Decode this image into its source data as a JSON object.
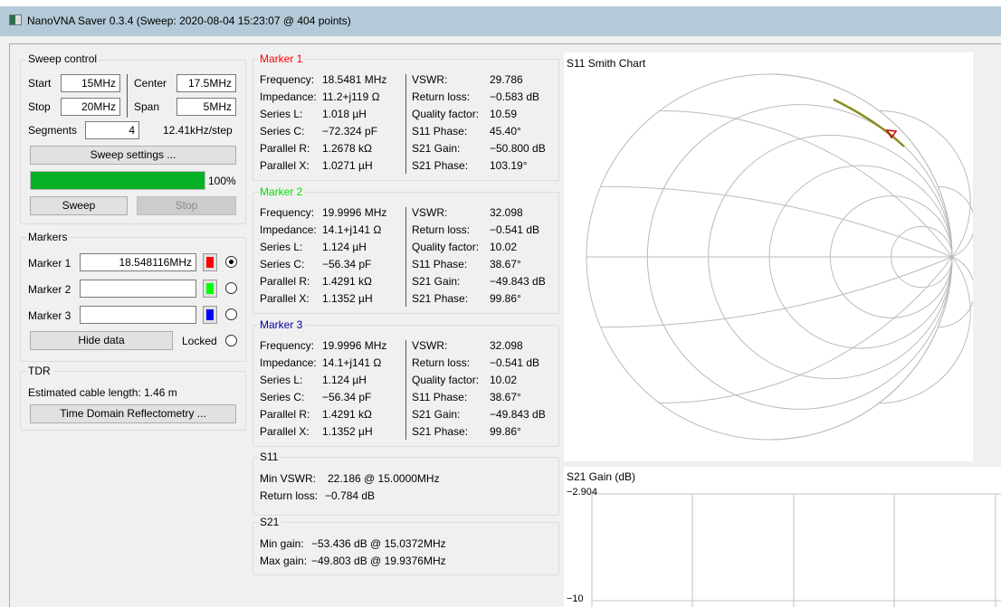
{
  "window": {
    "title": "NanoVNA Saver 0.3.4 (Sweep: 2020-08-04 15:23:07 @ 404 points)"
  },
  "sweep": {
    "title": "Sweep control",
    "start_label": "Start",
    "start": "15MHz",
    "center_label": "Center",
    "center": "17.5MHz",
    "stop_label": "Stop",
    "stop": "20MHz",
    "span_label": "Span",
    "span": "5MHz",
    "segments_label": "Segments",
    "segments": "4",
    "step": "12.41kHz/step",
    "settings_button": "Sweep settings ...",
    "progress": 100,
    "progress_text": "100%",
    "sweep_button": "Sweep",
    "stop_button": "Stop"
  },
  "markers": {
    "title": "Markers",
    "items": [
      {
        "label": "Marker 1",
        "value": "18.548116MHz",
        "color": "#ff0000",
        "selected": true
      },
      {
        "label": "Marker 2",
        "value": "",
        "color": "#00ff00",
        "selected": false
      },
      {
        "label": "Marker 3",
        "value": "",
        "color": "#0000ff",
        "selected": false
      }
    ],
    "hide_button": "Hide data",
    "locked_label": "Locked"
  },
  "tdr": {
    "title": "TDR",
    "cable_length": "Estimated cable length: 1.46 m",
    "button": "Time Domain Reflectometry ..."
  },
  "marker_data": [
    {
      "title": "Marker 1",
      "color": "#ff0000",
      "left": [
        [
          "Frequency:",
          "18.5481 MHz"
        ],
        [
          "Impedance:",
          "11.2+j119 Ω"
        ],
        [
          "Series L:",
          "1.018 µH"
        ],
        [
          "Series C:",
          "−72.324 pF"
        ],
        [
          "Parallel R:",
          "1.2678 kΩ"
        ],
        [
          "Parallel X:",
          "1.0271 µH"
        ]
      ],
      "right": [
        [
          "VSWR:",
          "29.786"
        ],
        [
          "Return loss:",
          "−0.583 dB"
        ],
        [
          "Quality factor:",
          "10.59"
        ],
        [
          "S11 Phase:",
          "45.40°"
        ],
        [
          "S21 Gain:",
          "−50.800 dB"
        ],
        [
          "S21 Phase:",
          "103.19°"
        ]
      ]
    },
    {
      "title": "Marker 2",
      "color": "#00e000",
      "left": [
        [
          "Frequency:",
          "19.9996 MHz"
        ],
        [
          "Impedance:",
          "14.1+j141 Ω"
        ],
        [
          "Series L:",
          "1.124 µH"
        ],
        [
          "Series C:",
          "−56.34 pF"
        ],
        [
          "Parallel R:",
          "1.4291 kΩ"
        ],
        [
          "Parallel X:",
          "1.1352 µH"
        ]
      ],
      "right": [
        [
          "VSWR:",
          "32.098"
        ],
        [
          "Return loss:",
          "−0.541 dB"
        ],
        [
          "Quality factor:",
          "10.02"
        ],
        [
          "S11 Phase:",
          "38.67°"
        ],
        [
          "S21 Gain:",
          "−49.843 dB"
        ],
        [
          "S21 Phase:",
          "99.86°"
        ]
      ]
    },
    {
      "title": "Marker 3",
      "color": "#0000a0",
      "left": [
        [
          "Frequency:",
          "19.9996 MHz"
        ],
        [
          "Impedance:",
          "14.1+j141 Ω"
        ],
        [
          "Series L:",
          "1.124 µH"
        ],
        [
          "Series C:",
          "−56.34 pF"
        ],
        [
          "Parallel R:",
          "1.4291 kΩ"
        ],
        [
          "Parallel X:",
          "1.1352 µH"
        ]
      ],
      "right": [
        [
          "VSWR:",
          "32.098"
        ],
        [
          "Return loss:",
          "−0.541 dB"
        ],
        [
          "Quality factor:",
          "10.02"
        ],
        [
          "S11 Phase:",
          "38.67°"
        ],
        [
          "S21 Gain:",
          "−49.843 dB"
        ],
        [
          "S21 Phase:",
          "99.86°"
        ]
      ]
    }
  ],
  "s11": {
    "title": "S11",
    "min_vswr_label": "Min VSWR:",
    "min_vswr": "22.186 @ 15.0000MHz",
    "return_loss_label": "Return loss:",
    "return_loss": "−0.784 dB"
  },
  "s21": {
    "title": "S21",
    "min_gain_label": "Min gain:",
    "min_gain": "−53.436 dB @ 15.0372MHz",
    "max_gain_label": "Max gain:",
    "max_gain": "−49.803 dB @ 19.9376MHz"
  },
  "smith_chart": {
    "title": "S11 Smith Chart",
    "trace_color": "#8b8b1e",
    "marker_color": "#c00000"
  },
  "s21_chart": {
    "title": "S21 Gain (dB)",
    "y_top": "−2.904",
    "y_bottom": "−10"
  }
}
